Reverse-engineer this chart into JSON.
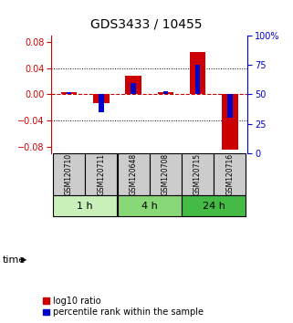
{
  "title": "GDS3433 / 10455",
  "samples": [
    "GSM120710",
    "GSM120711",
    "GSM120648",
    "GSM120708",
    "GSM120715",
    "GSM120716"
  ],
  "log10_ratio": [
    0.003,
    -0.013,
    0.028,
    0.004,
    0.065,
    -0.085
  ],
  "percentile_rank": [
    52,
    35,
    60,
    53,
    75,
    30
  ],
  "groups": [
    {
      "label": "1 h",
      "indices": [
        0,
        1
      ],
      "color": "#c8f0b8"
    },
    {
      "label": "4 h",
      "indices": [
        2,
        3
      ],
      "color": "#88d878"
    },
    {
      "label": "24 h",
      "indices": [
        4,
        5
      ],
      "color": "#44bb44"
    }
  ],
  "ylim_left": [
    -0.09,
    0.09
  ],
  "ylim_right": [
    0,
    100
  ],
  "yticks_left": [
    -0.08,
    -0.04,
    0.0,
    0.04,
    0.08
  ],
  "yticks_right": [
    0,
    25,
    50,
    75,
    100
  ],
  "bar_width": 0.5,
  "red_color": "#cc0000",
  "blue_color": "#0000cc",
  "hline_color": "#cc0000",
  "dotted_color": "#000000",
  "background_color": "#ffffff",
  "plot_bg_color": "#ffffff",
  "sample_box_color": "#cccccc",
  "legend_red_label": "log10 ratio",
  "legend_blue_label": "percentile rank within the sample",
  "time_label": "time",
  "title_fontsize": 10,
  "tick_fontsize": 7,
  "label_fontsize": 8,
  "legend_fontsize": 7,
  "sample_fontsize": 5.5
}
